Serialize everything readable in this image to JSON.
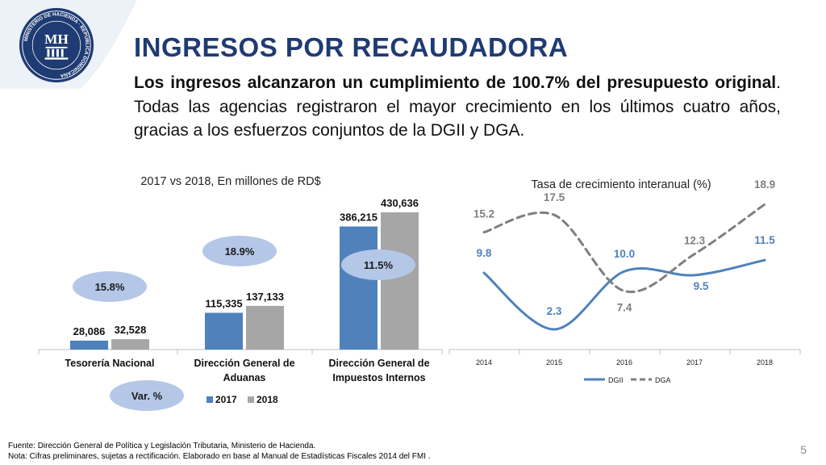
{
  "slide": {
    "title": "INGRESOS POR RECAUDADORA",
    "intro_bold": "Los ingresos alcanzaron un cumplimiento de 100.7% del presupuesto original",
    "intro_rest": ". Todas las agencias registraron el mayor crecimiento en los últimos cuatro años, gracias a los esfuerzos conjuntos de la DGII y DGA.",
    "logo_text": "MINISTERIO DE HACIENDA · REPÚBLICA DOMINICANA",
    "logo_monogram": "MH",
    "page_number": "5",
    "footer_line1": "Fuente: Dirección General de Política y Legislación Tributaria, Ministerio de Hacienda.",
    "footer_line2": "Nota: Cifras preliminares, sujetas a rectificación. Elaborado en base al Manual  de Estadísticas Fiscales  2014 del FMI .",
    "colors": {
      "title": "#1f3b73",
      "series_2017": "#4f81bd",
      "series_2018": "#a6a6a6",
      "dgii": "#4f81bd",
      "dga": "#7f7f7f",
      "badge": "#b4c7e7"
    }
  },
  "chart_data": [
    {
      "type": "bar",
      "title": "2017 vs 2018, En millones de RD$",
      "categories": [
        "Tesorería Nacional",
        "Dirección General de Aduanas",
        "Dirección General de Impuestos Internos"
      ],
      "category_lines": [
        [
          "Tesorería Nacional"
        ],
        [
          "Dirección General de",
          "Aduanas"
        ],
        [
          "Dirección General de",
          "Impuestos Internos"
        ]
      ],
      "series": [
        {
          "name": "2017",
          "values": [
            28086,
            115335,
            386215
          ],
          "labels": [
            "28,086",
            "115,335",
            "386,215"
          ]
        },
        {
          "name": "2018",
          "values": [
            32528,
            137133,
            430636
          ],
          "labels": [
            "32,528",
            "137,133",
            "430,636"
          ]
        }
      ],
      "variation": [
        "15.8%",
        "18.9%",
        "11.5%"
      ],
      "variation_label": "Var. %",
      "legend_position": "bottom",
      "ylim": [
        0,
        430636
      ],
      "grid": false
    },
    {
      "type": "line",
      "title": "Tasa de crecimiento interanual (%)",
      "x": [
        "2014",
        "2015",
        "2016",
        "2017",
        "2018"
      ],
      "series": [
        {
          "name": "DGII",
          "values": [
            9.8,
            2.3,
            10.0,
            9.5,
            11.5
          ],
          "labels": [
            "9.8",
            "2.3",
            "10.0",
            "9.5",
            "11.5"
          ],
          "style": "solid"
        },
        {
          "name": "DGA",
          "values": [
            15.2,
            17.5,
            7.4,
            12.3,
            18.9
          ],
          "labels": [
            "15.2",
            "17.5",
            "7.4",
            "12.3",
            "18.9"
          ],
          "style": "dashed"
        }
      ],
      "legend_position": "bottom",
      "grid": false
    }
  ]
}
